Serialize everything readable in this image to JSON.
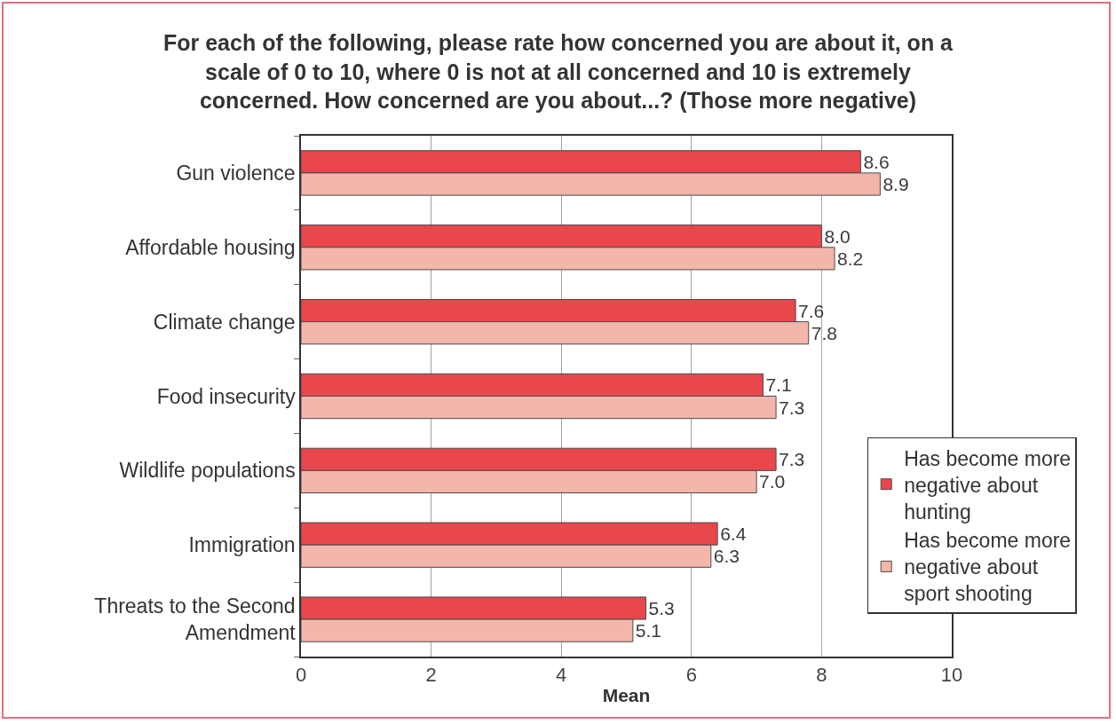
{
  "chart_data": {
    "type": "bar",
    "orientation": "horizontal",
    "title": "For each of the following, please rate how concerned you are about it, on a scale of 0 to 10, where 0 is not at all concerned and 10 is extremely concerned. How concerned are you about...? (Those more negative)",
    "xlabel": "Mean",
    "categories": [
      "Gun violence",
      "Affordable housing",
      "Climate change",
      "Food insecurity",
      "Wildlife populations",
      "Immigration",
      "Threats to the Second Amendment"
    ],
    "series": [
      {
        "name": "Has become more negative about hunting",
        "color": "#e8474c",
        "values": [
          8.6,
          8.0,
          7.6,
          7.1,
          7.3,
          6.4,
          5.3
        ],
        "value_labels": [
          "8.6",
          "8.0",
          "7.6",
          "7.1",
          "7.3",
          "6.4",
          "5.3"
        ]
      },
      {
        "name": "Has become more negative about sport shooting",
        "color": "#f3b6aa",
        "values": [
          8.9,
          8.2,
          7.8,
          7.3,
          7.0,
          6.3,
          5.1
        ],
        "value_labels": [
          "8.9",
          "8.2",
          "7.8",
          "7.3",
          "7.0",
          "6.3",
          "5.1"
        ]
      }
    ],
    "xlim": [
      0,
      10
    ],
    "xticks": [
      0,
      2,
      4,
      6,
      8,
      10
    ],
    "grid": "x",
    "legend": "bottom right"
  }
}
